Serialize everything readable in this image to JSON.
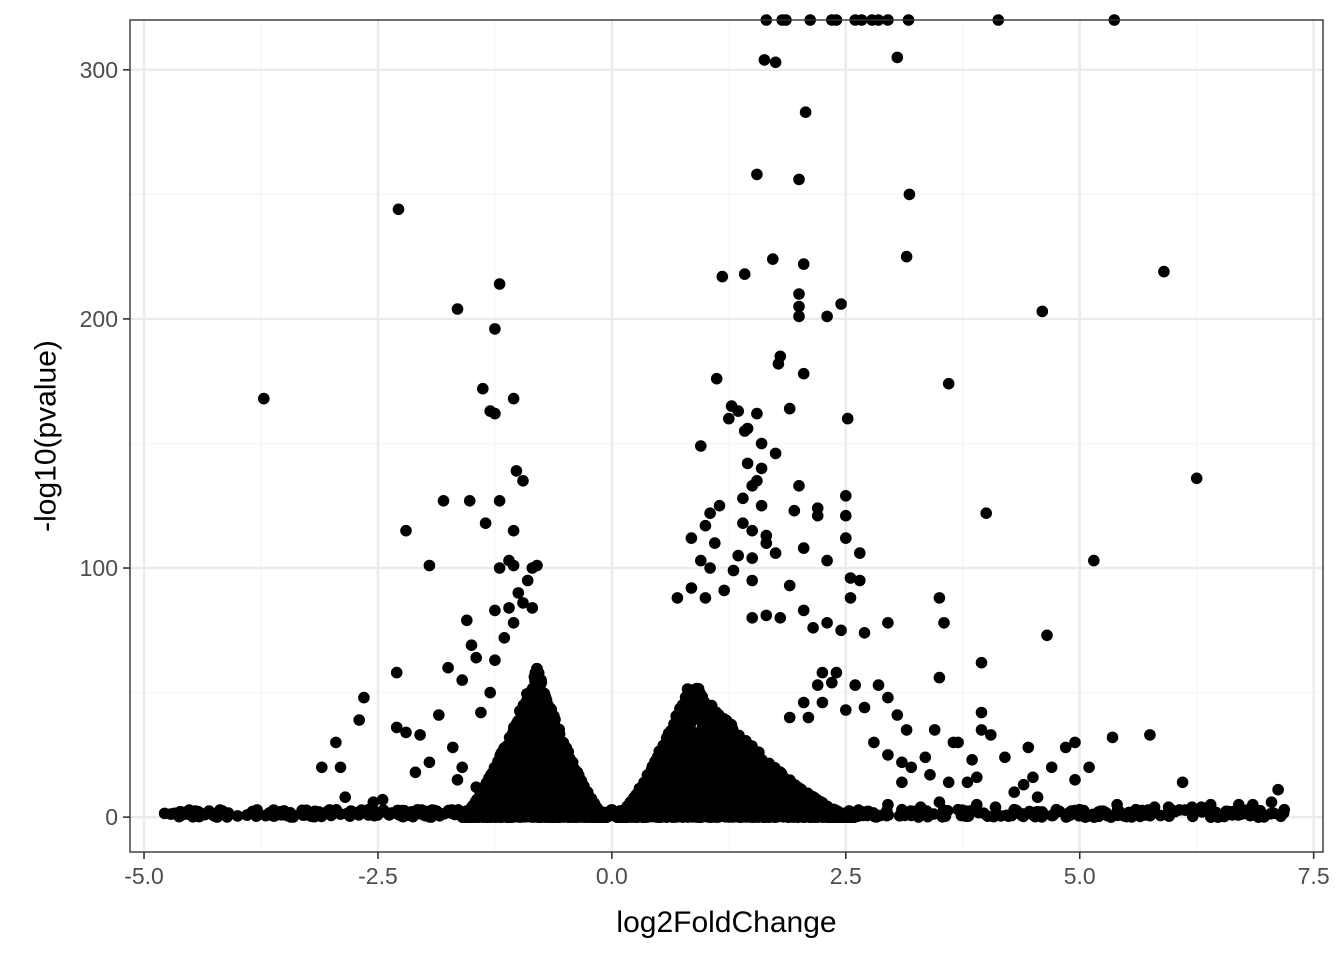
{
  "colors": {
    "point": "#000000",
    "panel_border": "#333333",
    "grid_major": "#ebebeb",
    "grid_minor": "#f5f5f5",
    "tick_text": "#4d4d4d",
    "background": "#ffffff"
  },
  "chart_data": {
    "type": "scatter",
    "title": "",
    "xlabel": "log2FoldChange",
    "ylabel": "-log10(pvalue)",
    "xlim": [
      -5.15,
      7.6
    ],
    "ylim": [
      -14,
      320
    ],
    "x_ticks": [
      -5.0,
      -2.5,
      0.0,
      2.5,
      5.0,
      7.5
    ],
    "x_tick_labels": [
      "-5.0",
      "-2.5",
      "0.0",
      "2.5",
      "5.0",
      "7.5"
    ],
    "y_ticks": [
      0,
      100,
      200,
      300
    ],
    "y_tick_labels": [
      "0",
      "100",
      "200",
      "300"
    ],
    "grid": true,
    "legend": "none",
    "theme": "bw",
    "dense_clouds": [
      {
        "x_min": -1.6,
        "x_max": -0.05,
        "peak_x": -0.8,
        "y_max": 60
      },
      {
        "x_min": 0.05,
        "x_max": 2.6,
        "peak_x": 0.85,
        "y_max": 55
      }
    ],
    "points": [
      [
        -4.78,
        1.5
      ],
      [
        -4.68,
        1.5
      ],
      [
        -4.35,
        1
      ],
      [
        -4.25,
        0.5
      ],
      [
        -4.1,
        0.8
      ],
      [
        -4.0,
        0.5
      ],
      [
        -3.9,
        0.8
      ],
      [
        -3.8,
        0.4
      ],
      [
        -3.7,
        0.6
      ],
      [
        -3.55,
        1
      ],
      [
        -3.4,
        0.6
      ],
      [
        -3.3,
        0.8
      ],
      [
        -3.2,
        0.3
      ],
      [
        -3.1,
        0.5
      ],
      [
        -3.0,
        0.7
      ],
      [
        -2.9,
        1.2
      ],
      [
        -2.8,
        0.4
      ],
      [
        -2.7,
        2
      ],
      [
        -2.6,
        3
      ],
      [
        -3.72,
        168
      ],
      [
        -2.28,
        244
      ],
      [
        -1.65,
        204
      ],
      [
        -1.2,
        214
      ],
      [
        -1.25,
        196
      ],
      [
        -1.38,
        172
      ],
      [
        -1.3,
        163
      ],
      [
        -1.25,
        162
      ],
      [
        -1.05,
        168
      ],
      [
        -1.02,
        139
      ],
      [
        -0.95,
        135
      ],
      [
        -1.8,
        127
      ],
      [
        -1.52,
        127
      ],
      [
        -1.2,
        127
      ],
      [
        -1.35,
        118
      ],
      [
        -1.05,
        115
      ],
      [
        -2.2,
        115
      ],
      [
        -1.95,
        101
      ],
      [
        -1.1,
        103
      ],
      [
        -1.2,
        100
      ],
      [
        -1.05,
        101
      ],
      [
        -0.85,
        100
      ],
      [
        -0.8,
        101
      ],
      [
        -0.9,
        95
      ],
      [
        -2.65,
        48
      ],
      [
        -2.3,
        58
      ],
      [
        -2.7,
        39
      ],
      [
        -2.3,
        36
      ],
      [
        -2.2,
        34
      ],
      [
        -2.05,
        33
      ],
      [
        -2.95,
        30
      ],
      [
        -3.1,
        20
      ],
      [
        -2.9,
        20
      ],
      [
        -2.1,
        18
      ],
      [
        -1.85,
        41
      ],
      [
        -1.75,
        60
      ],
      [
        -1.6,
        55
      ],
      [
        -1.55,
        79
      ],
      [
        -1.5,
        69
      ],
      [
        -1.45,
        64
      ],
      [
        -1.25,
        63
      ],
      [
        -1.3,
        50
      ],
      [
        -1.4,
        42
      ],
      [
        -1.7,
        28
      ],
      [
        -1.95,
        22
      ],
      [
        -1.6,
        20
      ],
      [
        -1.25,
        83
      ],
      [
        -1.1,
        84
      ],
      [
        -1.05,
        78
      ],
      [
        -1.15,
        72
      ],
      [
        -0.95,
        86
      ],
      [
        -0.85,
        84
      ],
      [
        -1.0,
        90
      ],
      [
        -1.65,
        15
      ],
      [
        -1.45,
        12
      ],
      [
        -2.45,
        7
      ],
      [
        -2.55,
        6
      ],
      [
        -2.85,
        8
      ],
      [
        1.55,
        258
      ],
      [
        1.72,
        224
      ],
      [
        2.0,
        256
      ],
      [
        2.05,
        222
      ],
      [
        1.18,
        217
      ],
      [
        1.42,
        218
      ],
      [
        2.0,
        210
      ],
      [
        2.0,
        205
      ],
      [
        2.0,
        201
      ],
      [
        2.3,
        201
      ],
      [
        2.45,
        206
      ],
      [
        3.05,
        305
      ],
      [
        3.18,
        250
      ],
      [
        3.15,
        225
      ],
      [
        2.07,
        283
      ],
      [
        1.63,
        304
      ],
      [
        1.75,
        303
      ],
      [
        5.9,
        219
      ],
      [
        4.6,
        203
      ],
      [
        3.6,
        174
      ],
      [
        6.25,
        136
      ],
      [
        4.0,
        122
      ],
      [
        5.15,
        103
      ],
      [
        4.65,
        73
      ],
      [
        3.95,
        62
      ],
      [
        3.5,
        56
      ],
      [
        3.55,
        78
      ],
      [
        3.5,
        88
      ],
      [
        1.8,
        185
      ],
      [
        1.78,
        182
      ],
      [
        2.05,
        178
      ],
      [
        1.12,
        176
      ],
      [
        1.28,
        165
      ],
      [
        1.25,
        160
      ],
      [
        1.35,
        163
      ],
      [
        1.55,
        162
      ],
      [
        1.9,
        164
      ],
      [
        2.52,
        160
      ],
      [
        1.42,
        155
      ],
      [
        1.45,
        156
      ],
      [
        1.6,
        150
      ],
      [
        0.95,
        149
      ],
      [
        1.6,
        140
      ],
      [
        1.45,
        142
      ],
      [
        1.75,
        146
      ],
      [
        1.55,
        135
      ],
      [
        1.5,
        133
      ],
      [
        2.0,
        133
      ],
      [
        1.4,
        128
      ],
      [
        1.6,
        125
      ],
      [
        1.95,
        123
      ],
      [
        2.2,
        124
      ],
      [
        2.2,
        121
      ],
      [
        2.5,
        121
      ],
      [
        2.5,
        129
      ],
      [
        1.15,
        125
      ],
      [
        1.4,
        118
      ],
      [
        1.5,
        115
      ],
      [
        1.65,
        113
      ],
      [
        1.05,
        122
      ],
      [
        1.0,
        117
      ],
      [
        1.1,
        110
      ],
      [
        0.85,
        112
      ],
      [
        1.65,
        110
      ],
      [
        1.75,
        106
      ],
      [
        1.5,
        104
      ],
      [
        1.35,
        105
      ],
      [
        2.5,
        112
      ],
      [
        2.65,
        106
      ],
      [
        2.05,
        108
      ],
      [
        2.3,
        103
      ],
      [
        0.95,
        103
      ],
      [
        1.05,
        100
      ],
      [
        1.3,
        99
      ],
      [
        1.5,
        95
      ],
      [
        2.55,
        96
      ],
      [
        2.65,
        95
      ],
      [
        2.55,
        88
      ],
      [
        1.9,
        93
      ],
      [
        0.85,
        92
      ],
      [
        0.7,
        88
      ],
      [
        1.0,
        88
      ],
      [
        1.2,
        91
      ],
      [
        2.05,
        83
      ],
      [
        2.3,
        78
      ],
      [
        2.15,
        76
      ],
      [
        2.45,
        75
      ],
      [
        2.7,
        74
      ],
      [
        2.95,
        78
      ],
      [
        1.65,
        81
      ],
      [
        1.8,
        80
      ],
      [
        1.5,
        80
      ],
      [
        2.85,
        53
      ],
      [
        2.6,
        53
      ],
      [
        2.95,
        48
      ],
      [
        3.05,
        41
      ],
      [
        3.15,
        35
      ],
      [
        2.2,
        53
      ],
      [
        2.35,
        54
      ],
      [
        2.25,
        58
      ],
      [
        2.4,
        58
      ],
      [
        2.05,
        46
      ],
      [
        2.25,
        46
      ],
      [
        2.5,
        43
      ],
      [
        2.7,
        44
      ],
      [
        1.9,
        40
      ],
      [
        2.1,
        40
      ],
      [
        2.8,
        30
      ],
      [
        2.95,
        25
      ],
      [
        3.1,
        22
      ],
      [
        3.35,
        24
      ],
      [
        3.4,
        17
      ],
      [
        3.1,
        14
      ],
      [
        3.2,
        20
      ],
      [
        3.45,
        35
      ],
      [
        3.65,
        30
      ],
      [
        3.7,
        30
      ],
      [
        3.95,
        35
      ],
      [
        3.95,
        42
      ],
      [
        4.05,
        33
      ],
      [
        4.2,
        24
      ],
      [
        4.45,
        28
      ],
      [
        3.85,
        23
      ],
      [
        3.6,
        14
      ],
      [
        3.8,
        14
      ],
      [
        3.9,
        16
      ],
      [
        4.3,
        10
      ],
      [
        4.4,
        13
      ],
      [
        4.55,
        8
      ],
      [
        4.5,
        16
      ],
      [
        4.7,
        20
      ],
      [
        4.85,
        28
      ],
      [
        4.95,
        30
      ],
      [
        4.95,
        15
      ],
      [
        5.1,
        20
      ],
      [
        5.35,
        32
      ],
      [
        5.75,
        33
      ],
      [
        5.8,
        4
      ],
      [
        5.95,
        4
      ],
      [
        6.1,
        14
      ],
      [
        6.2,
        4
      ],
      [
        6.3,
        4
      ],
      [
        6.4,
        5
      ],
      [
        6.7,
        5
      ],
      [
        6.85,
        5
      ],
      [
        7.05,
        6
      ],
      [
        7.12,
        11
      ],
      [
        5.0,
        3
      ],
      [
        5.2,
        2
      ],
      [
        5.4,
        5
      ],
      [
        5.6,
        3
      ],
      [
        4.75,
        3
      ],
      [
        4.6,
        2
      ],
      [
        4.3,
        3
      ],
      [
        4.1,
        4
      ],
      [
        3.9,
        5
      ],
      [
        3.7,
        3
      ],
      [
        3.5,
        6
      ],
      [
        3.3,
        4
      ],
      [
        3.1,
        3
      ],
      [
        2.95,
        5
      ],
      [
        1.65,
        320
      ],
      [
        1.82,
        320
      ],
      [
        1.86,
        320
      ],
      [
        2.12,
        320
      ],
      [
        2.35,
        320
      ],
      [
        2.4,
        320
      ],
      [
        2.6,
        320
      ],
      [
        2.67,
        320
      ],
      [
        2.78,
        320
      ],
      [
        2.85,
        320
      ],
      [
        2.95,
        320
      ],
      [
        3.17,
        320
      ],
      [
        4.13,
        320
      ],
      [
        5.37,
        320
      ]
    ]
  }
}
